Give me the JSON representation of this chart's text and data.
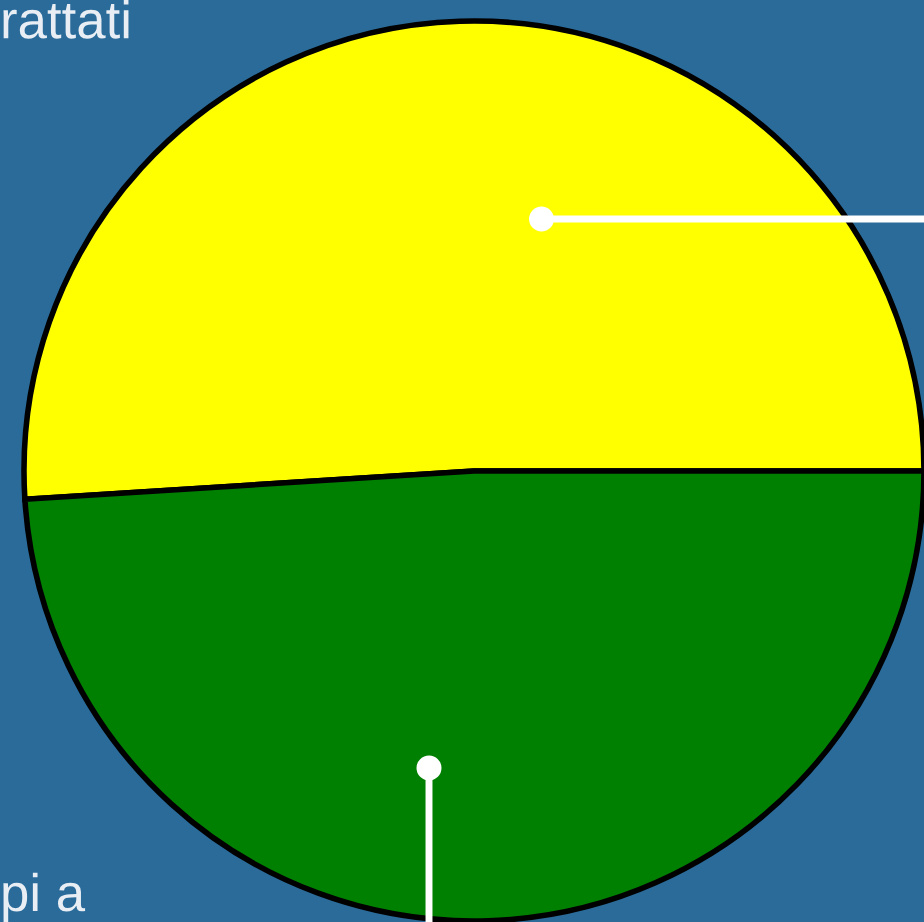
{
  "chart_data": {
    "type": "pie",
    "categories": [
      null,
      null
    ],
    "values": [
      51,
      49
    ],
    "colors": [
      "#ffff00",
      "#008000"
    ],
    "annotations": [
      "rattati",
      "pi a"
    ],
    "legend": false
  }
}
